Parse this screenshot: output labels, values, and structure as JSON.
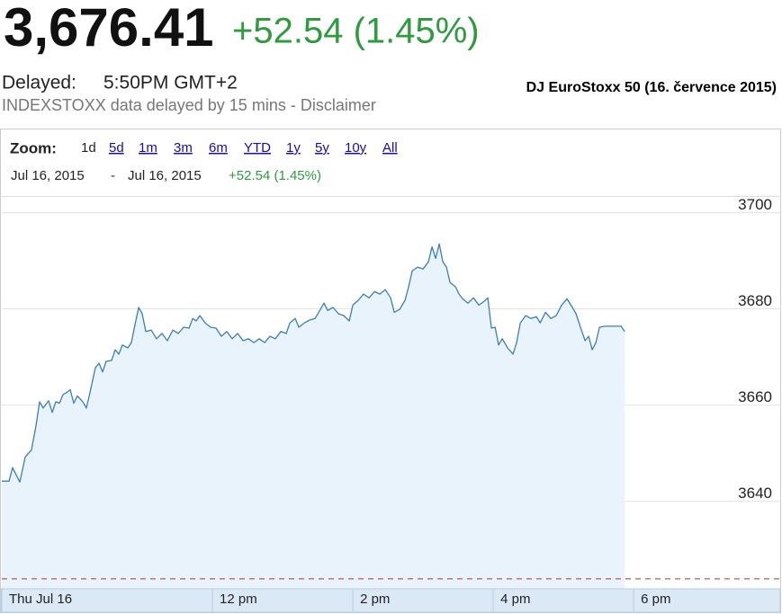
{
  "header": {
    "price": "3,676.41",
    "change": "+52.54 (1.45%)",
    "delayed_label": "Delayed:",
    "time": "5:50PM GMT+2",
    "disclaimer": "INDEXSTOXX data delayed by 15 mins - Disclaimer",
    "annotation": "DJ EuroStoxx 50 (16. července 2015)"
  },
  "controls": {
    "zoom_label": "Zoom:",
    "zoom_options": [
      "1d",
      "5d",
      "1m",
      "3m",
      "6m",
      "YTD",
      "1y",
      "5y",
      "10y",
      "All"
    ],
    "active_zoom": "1d",
    "range_start": "Jul 16, 2015",
    "range_separator": "-",
    "range_end": "Jul 16, 2015",
    "range_change": "+52.54 (1.45%)"
  },
  "chart_data": {
    "type": "area",
    "color": "#3b7fb5",
    "fill_color": "#e8f3fb",
    "change_color": "#2e9b3e",
    "x": [
      9.0,
      9.103,
      9.154,
      9.256,
      9.333,
      9.423,
      9.487,
      9.538,
      9.59,
      9.667,
      9.718,
      9.769,
      9.821,
      9.872,
      9.923,
      9.974,
      10.026,
      10.077,
      10.154,
      10.205,
      10.256,
      10.333,
      10.385,
      10.436,
      10.487,
      10.564,
      10.615,
      10.667,
      10.718,
      10.795,
      10.846,
      10.897,
      10.949,
      11.0,
      11.051,
      11.128,
      11.205,
      11.282,
      11.359,
      11.436,
      11.513,
      11.59,
      11.667,
      11.718,
      11.769,
      11.821,
      11.897,
      11.974,
      12.051,
      12.128,
      12.205,
      12.282,
      12.359,
      12.436,
      12.513,
      12.59,
      12.667,
      12.744,
      12.821,
      12.897,
      12.974,
      13.051,
      13.103,
      13.179,
      13.231,
      13.308,
      13.385,
      13.462,
      13.538,
      13.59,
      13.641,
      13.718,
      13.795,
      13.872,
      13.949,
      14.0,
      14.077,
      14.154,
      14.231,
      14.308,
      14.385,
      14.462,
      14.538,
      14.59,
      14.667,
      14.744,
      14.795,
      14.846,
      14.923,
      15.0,
      15.077,
      15.128,
      15.179,
      15.231,
      15.282,
      15.333,
      15.385,
      15.462,
      15.513,
      15.564,
      15.641,
      15.718,
      15.795,
      15.872,
      15.923,
      15.974,
      16.026,
      16.077,
      16.128,
      16.205,
      16.282,
      16.333,
      16.385,
      16.462,
      16.538,
      16.615,
      16.667,
      16.744,
      16.821,
      16.897,
      16.974,
      17.051,
      17.128,
      17.179,
      17.256,
      17.308,
      17.359,
      17.41,
      17.462,
      17.513,
      17.59,
      17.692,
      17.821,
      17.872
    ],
    "values": [
      3644.2,
      3644.2,
      3647.0,
      3644.0,
      3649.2,
      3650.7,
      3655.7,
      3660.7,
      3659.4,
      3660.9,
      3658.5,
      3660.7,
      3660.4,
      3662.2,
      3662.6,
      3663.2,
      3660.4,
      3661.9,
      3660.7,
      3659.4,
      3662.6,
      3667.8,
      3668.7,
      3666.9,
      3669.1,
      3669.3,
      3671.5,
      3670.6,
      3672.5,
      3671.9,
      3673.0,
      3676.7,
      3680.3,
      3679.0,
      3675.3,
      3675.6,
      3673.8,
      3674.9,
      3673.4,
      3675.6,
      3674.9,
      3676.2,
      3676.0,
      3678.0,
      3677.5,
      3678.6,
      3677.1,
      3676.2,
      3676.0,
      3674.3,
      3675.3,
      3673.8,
      3674.9,
      3673.4,
      3673.8,
      3673.0,
      3673.8,
      3673.0,
      3674.3,
      3673.8,
      3675.3,
      3674.9,
      3677.1,
      3678.0,
      3676.2,
      3677.1,
      3677.7,
      3678.0,
      3679.9,
      3681.2,
      3679.7,
      3680.3,
      3679.0,
      3678.6,
      3677.5,
      3680.8,
      3681.8,
      3683.1,
      3682.3,
      3683.6,
      3683.1,
      3684.0,
      3682.3,
      3679.3,
      3679.9,
      3681.8,
      3684.6,
      3687.9,
      3688.7,
      3688.3,
      3689.8,
      3692.9,
      3690.5,
      3693.5,
      3689.8,
      3688.7,
      3685.5,
      3684.6,
      3683.1,
      3682.1,
      3681.2,
      3682.3,
      3680.8,
      3681.6,
      3682.3,
      3676.0,
      3676.2,
      3672.5,
      3673.8,
      3671.9,
      3670.6,
      3673.0,
      3677.1,
      3678.6,
      3678.0,
      3678.4,
      3677.1,
      3679.3,
      3678.0,
      3678.6,
      3680.8,
      3682.1,
      3680.3,
      3679.0,
      3675.6,
      3673.4,
      3674.3,
      3671.5,
      3673.0,
      3676.2,
      3676.4,
      3676.4,
      3676.4,
      3675.3
    ],
    "previous_close": 3623.87,
    "xlim": [
      9,
      20.1
    ],
    "ylim": [
      3621.8,
      3703.3
    ],
    "yticks": [
      3640,
      3660,
      3680,
      3700
    ],
    "xticks": [
      {
        "value": 9,
        "label": "Thu Jul 16"
      },
      {
        "value": 12,
        "label": "12 pm"
      },
      {
        "value": 14,
        "label": "2 pm"
      },
      {
        "value": 16,
        "label": "4 pm"
      },
      {
        "value": 18,
        "label": "6 pm"
      }
    ],
    "grid": true
  }
}
